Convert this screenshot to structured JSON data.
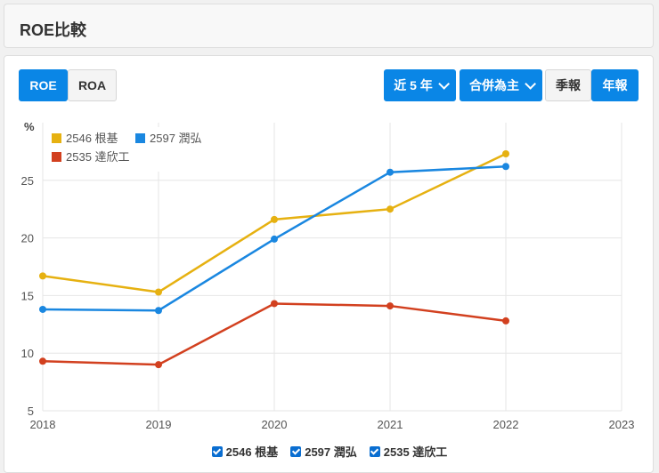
{
  "header": {
    "title": "ROE比較"
  },
  "toggle": {
    "roe_label": "ROE",
    "roa_label": "ROA"
  },
  "controls": {
    "period_label": "近 5 年",
    "basis_label": "合併為主",
    "quarterly_label": "季報",
    "annual_label": "年報"
  },
  "chart_data": {
    "type": "line",
    "ylabel": "%",
    "ylim": [
      5,
      30
    ],
    "yticks": [
      5,
      10,
      15,
      20,
      25
    ],
    "x": [
      2018,
      2019,
      2020,
      2021,
      2022
    ],
    "xticks": [
      "2018",
      "2019",
      "2020",
      "2021",
      "2022",
      "2023"
    ],
    "grid": true,
    "legend_position": "top-left",
    "series": [
      {
        "name": "2546 根基",
        "color": "#e6b111",
        "values": [
          16.7,
          15.3,
          21.6,
          22.5,
          27.3
        ]
      },
      {
        "name": "2597 潤弘",
        "color": "#1a87e0",
        "values": [
          13.8,
          13.7,
          19.9,
          25.7,
          26.2
        ]
      },
      {
        "name": "2535 達欣工",
        "color": "#d2401f",
        "values": [
          9.3,
          9.0,
          14.3,
          14.1,
          12.8
        ]
      }
    ]
  },
  "bottom_legend": [
    "2546 根基",
    "2597 潤弘",
    "2535 達欣工"
  ],
  "bottom_legend_checked": [
    true,
    true,
    true
  ]
}
